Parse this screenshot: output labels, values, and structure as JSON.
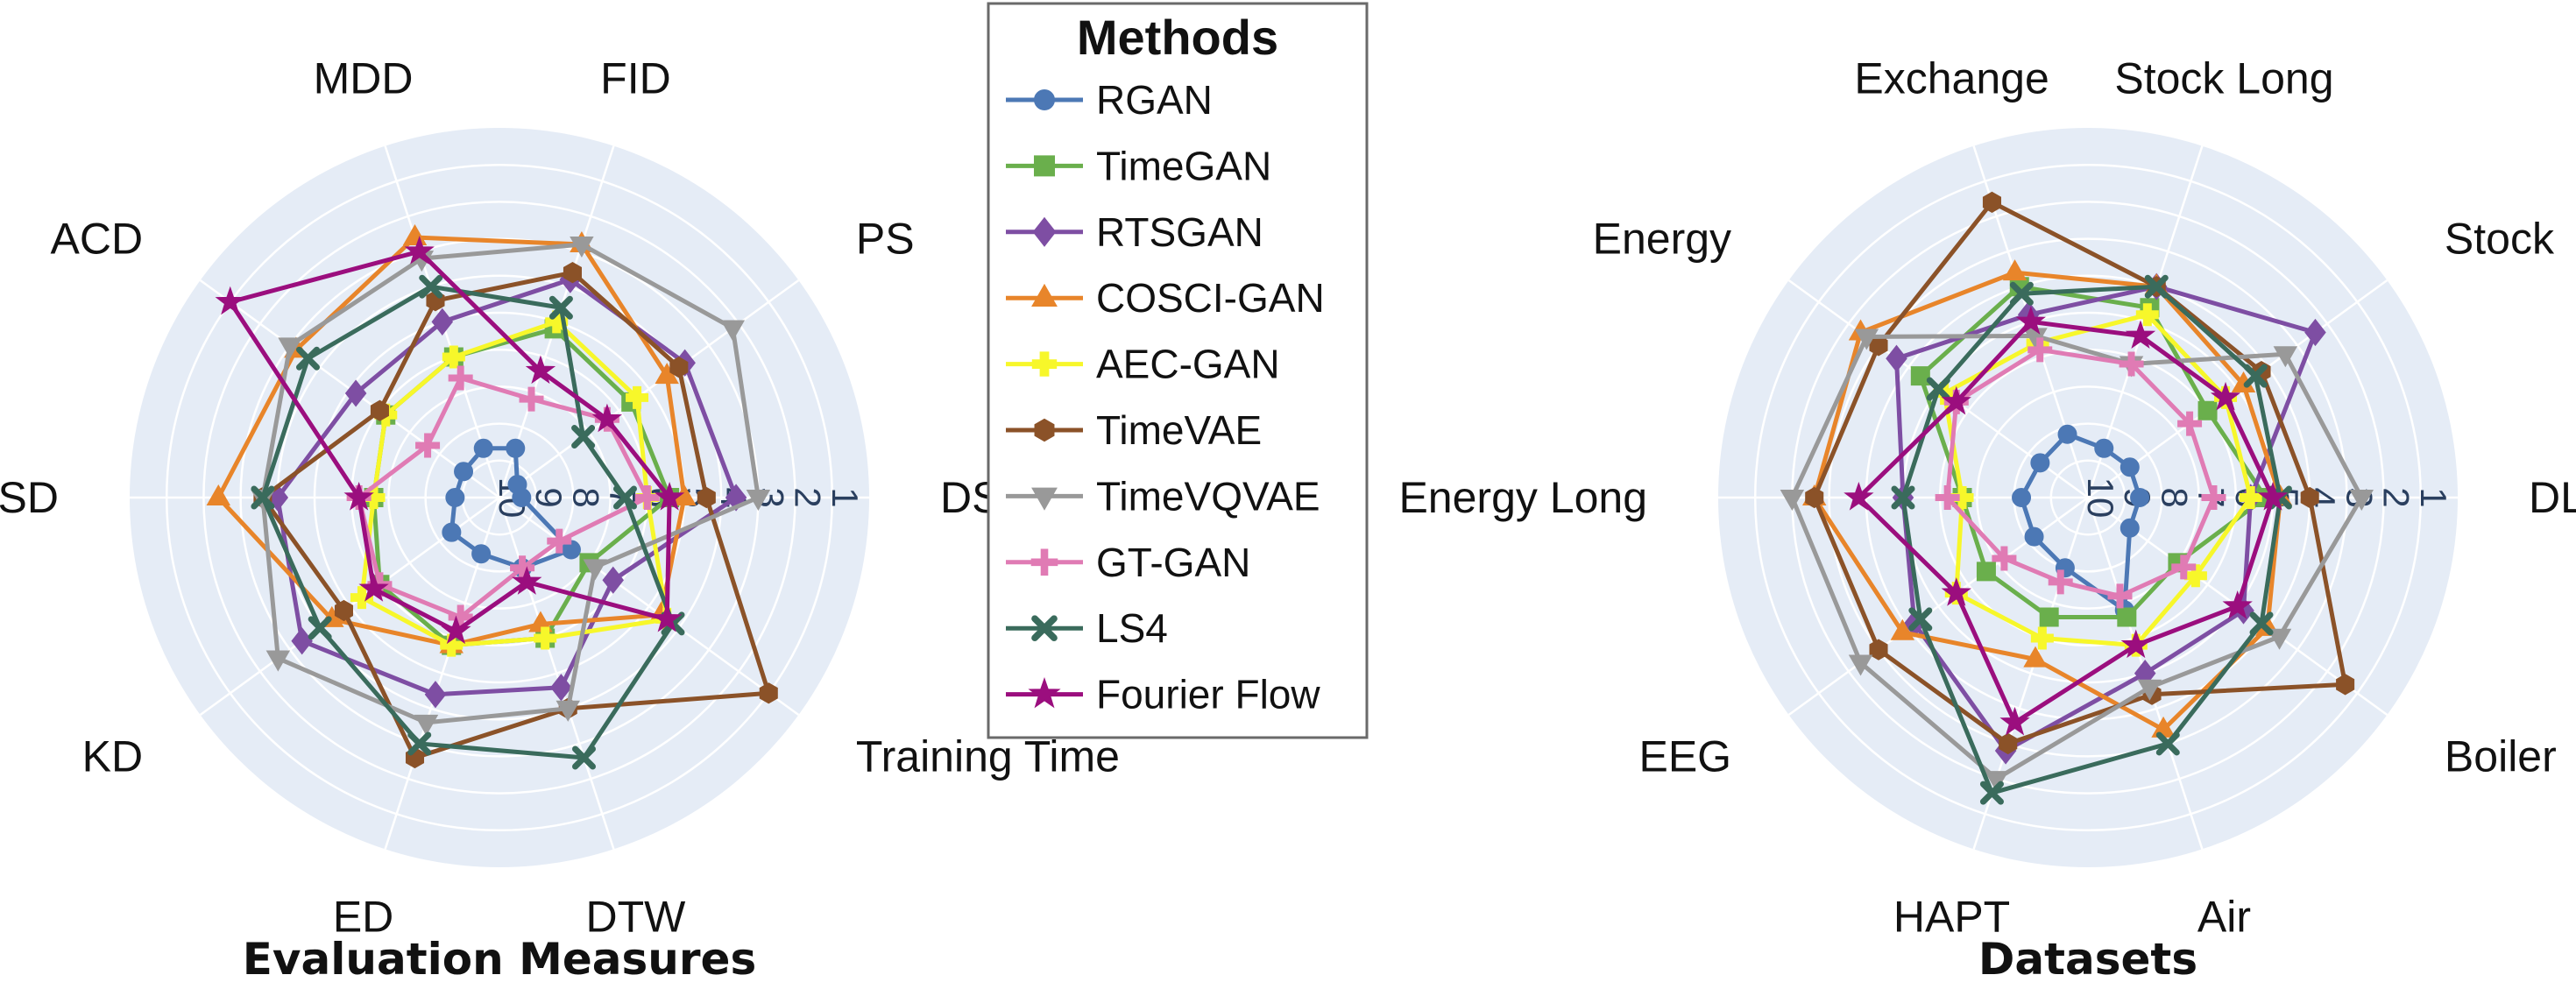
{
  "legend": {
    "title": "Methods",
    "methods": [
      {
        "name": "RGAN",
        "color": "#4c78b5",
        "marker": "circle"
      },
      {
        "name": "TimeGAN",
        "color": "#6aaf4c",
        "marker": "square"
      },
      {
        "name": "RTSGAN",
        "color": "#7e4ea3",
        "marker": "diamond"
      },
      {
        "name": "COSCI-GAN",
        "color": "#e8852a",
        "marker": "triangle-up"
      },
      {
        "name": "AEC-GAN",
        "color": "#f7f72a",
        "marker": "cross"
      },
      {
        "name": "TimeVAE",
        "color": "#8b5228",
        "marker": "hexagon"
      },
      {
        "name": "TimeVQVAE",
        "color": "#999999",
        "marker": "triangle-down"
      },
      {
        "name": "GT-GAN",
        "color": "#e07bb4",
        "marker": "plus"
      },
      {
        "name": "LS4",
        "color": "#3a6b5c",
        "marker": "x"
      },
      {
        "name": "Fourier Flow",
        "color": "#9b0e7e",
        "marker": "star"
      }
    ]
  },
  "chart_data": [
    {
      "type": "radar",
      "title": "Evaluation Measures",
      "axes": [
        "DS",
        "PS",
        "FID",
        "MDD",
        "ACD",
        "SD",
        "KD",
        "ED",
        "DTW",
        "Training Time"
      ],
      "radial_axis": {
        "range": [
          10,
          0
        ],
        "ticks": [
          "1",
          "2",
          "3",
          "4",
          "5",
          "6",
          "7",
          "8",
          "9",
          "10"
        ],
        "reversed": true
      },
      "grid": true,
      "series": [
        {
          "name": "RGAN",
          "values": [
            9.4,
            9.4,
            8.6,
            8.6,
            8.8,
            8.8,
            8.4,
            8.4,
            8.0,
            7.6
          ]
        },
        {
          "name": "TimeGAN",
          "values": [
            5.4,
            5.6,
            5.2,
            6.0,
            6.2,
            6.6,
            6.0,
            5.8,
            6.0,
            7.0
          ]
        },
        {
          "name": "RTSGAN",
          "values": [
            3.6,
            3.8,
            3.8,
            5.0,
            5.2,
            4.0,
            3.4,
            4.4,
            4.6,
            6.2
          ]
        },
        {
          "name": "COSCI-GAN",
          "values": [
            5.0,
            4.4,
            2.8,
            2.6,
            3.2,
            2.4,
            4.4,
            5.8,
            6.4,
            4.6
          ]
        },
        {
          "name": "AEC-GAN",
          "values": [
            6.0,
            5.4,
            5.0,
            6.0,
            6.2,
            6.6,
            5.4,
            5.8,
            6.0,
            4.4
          ]
        },
        {
          "name": "TimeVAE",
          "values": [
            4.4,
            4.0,
            3.6,
            4.4,
            6.0,
            3.6,
            4.8,
            2.6,
            4.0,
            1.0
          ]
        },
        {
          "name": "TimeVQVAE",
          "values": [
            3.0,
            2.2,
            2.8,
            3.2,
            3.0,
            3.6,
            2.6,
            3.6,
            4.0,
            6.8
          ]
        },
        {
          "name": "GT-GAN",
          "values": [
            6.0,
            6.4,
            7.2,
            6.6,
            7.6,
            6.2,
            6.0,
            6.6,
            8.0,
            8.0
          ]
        },
        {
          "name": "LS4",
          "values": [
            6.6,
            7.2,
            4.6,
            4.0,
            3.6,
            3.6,
            4.0,
            3.0,
            2.6,
            4.2
          ]
        },
        {
          "name": "Fourier Flow",
          "values": [
            5.4,
            6.4,
            6.4,
            3.0,
            1.0,
            6.2,
            5.8,
            6.2,
            7.6,
            4.4
          ]
        }
      ]
    },
    {
      "type": "radar",
      "title": "Datasets",
      "axes": [
        "DLG",
        "Stock",
        "Stock Long",
        "Exchange",
        "Energy",
        "Energy Long",
        "EEG",
        "HAPT",
        "Air",
        "Boiler"
      ],
      "radial_axis": {
        "range": [
          10,
          0
        ],
        "ticks": [
          "1",
          "2",
          "3",
          "4",
          "5",
          "6",
          "7",
          "8",
          "9",
          "10"
        ],
        "reversed": true
      },
      "grid": true,
      "series": [
        {
          "name": "RGAN",
          "values": [
            8.6,
            8.6,
            8.6,
            8.2,
            8.4,
            8.2,
            8.2,
            8.0,
            6.8,
            8.6
          ]
        },
        {
          "name": "TimeGAN",
          "values": [
            5.2,
            6.0,
            4.6,
            4.0,
            4.4,
            6.6,
            6.6,
            6.6,
            6.6,
            7.0
          ]
        },
        {
          "name": "RTSGAN",
          "values": [
            5.6,
            2.4,
            4.0,
            4.8,
            3.6,
            5.0,
            4.2,
            2.8,
            5.0,
            4.8
          ]
        },
        {
          "name": "COSCI-GAN",
          "values": [
            4.8,
            4.8,
            4.0,
            3.6,
            2.4,
            2.6,
            3.8,
            5.4,
            3.4,
            4.0
          ]
        },
        {
          "name": "AEC-GAN",
          "values": [
            5.6,
            5.4,
            4.8,
            5.6,
            5.2,
            6.6,
            5.6,
            6.0,
            5.8,
            6.4
          ]
        },
        {
          "name": "TimeVAE",
          "values": [
            4.0,
            4.2,
            4.0,
            1.6,
            3.0,
            2.6,
            3.0,
            3.0,
            4.4,
            1.4
          ]
        },
        {
          "name": "TimeVQVAE",
          "values": [
            2.6,
            3.4,
            6.2,
            5.4,
            2.6,
            2.0,
            2.4,
            2.0,
            4.6,
            3.6
          ]
        },
        {
          "name": "GT-GAN",
          "values": [
            6.6,
            6.6,
            6.2,
            5.8,
            5.6,
            6.2,
            7.2,
            7.6,
            7.2,
            6.8
          ]
        },
        {
          "name": "LS4",
          "values": [
            4.8,
            4.4,
            4.0,
            4.2,
            5.0,
            5.0,
            4.4,
            1.6,
            3.0,
            4.2
          ]
        },
        {
          "name": "Fourier Flow",
          "values": [
            5.0,
            5.4,
            5.4,
            5.0,
            5.6,
            3.8,
            5.6,
            3.6,
            5.8,
            5.0
          ]
        }
      ]
    }
  ]
}
